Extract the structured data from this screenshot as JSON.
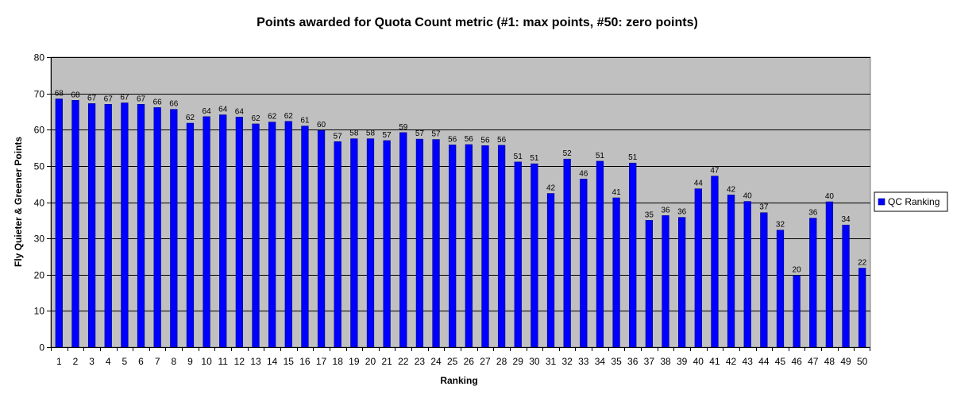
{
  "chart_data": {
    "type": "bar",
    "title": "Points awarded for Quota Count metric (#1: max points, #50: zero points)",
    "xlabel": "Ranking",
    "ylabel": "Fly Quieter & Greener Points",
    "ylim": [
      0,
      80
    ],
    "yticks": [
      0,
      10,
      20,
      30,
      40,
      50,
      60,
      70,
      80
    ],
    "grid": true,
    "legend_position": "right",
    "plot_background": "#c0c0c0",
    "bar_color": "#0000ff",
    "categories": [
      "1",
      "2",
      "3",
      "4",
      "5",
      "6",
      "7",
      "8",
      "9",
      "10",
      "11",
      "12",
      "13",
      "14",
      "15",
      "16",
      "17",
      "18",
      "19",
      "20",
      "21",
      "22",
      "23",
      "24",
      "25",
      "26",
      "27",
      "28",
      "29",
      "30",
      "31",
      "32",
      "33",
      "34",
      "35",
      "36",
      "37",
      "38",
      "39",
      "40",
      "41",
      "42",
      "43",
      "44",
      "45",
      "46",
      "47",
      "48",
      "49",
      "50"
    ],
    "series": [
      {
        "name": "QC Ranking",
        "values": [
          68.5,
          68.1,
          67.2,
          67.0,
          67.4,
          67.0,
          66.1,
          65.6,
          61.8,
          63.6,
          64.1,
          63.5,
          61.6,
          62.1,
          62.3,
          61.0,
          59.8,
          56.7,
          57.5,
          57.5,
          57.0,
          59.2,
          57.4,
          57.3,
          55.8,
          55.9,
          55.6,
          55.7,
          51.1,
          50.6,
          42.4,
          51.9,
          46.4,
          51.3,
          41.2,
          50.8,
          35.0,
          36.3,
          35.8,
          43.7,
          47.2,
          42.0,
          40.2,
          37.1,
          32.3,
          19.8,
          35.6,
          40.1,
          33.7,
          21.8
        ],
        "labels": [
          "68",
          "68",
          "67",
          "67",
          "67",
          "67",
          "66",
          "66",
          "62",
          "64",
          "64",
          "64",
          "62",
          "62",
          "62",
          "61",
          "60",
          "57",
          "58",
          "58",
          "57",
          "59",
          "57",
          "57",
          "56",
          "56",
          "56",
          "56",
          "51",
          "51",
          "42",
          "52",
          "46",
          "51",
          "41",
          "51",
          "35",
          "36",
          "36",
          "44",
          "47",
          "42",
          "40",
          "37",
          "32",
          "20",
          "36",
          "40",
          "34",
          "22"
        ]
      }
    ]
  }
}
